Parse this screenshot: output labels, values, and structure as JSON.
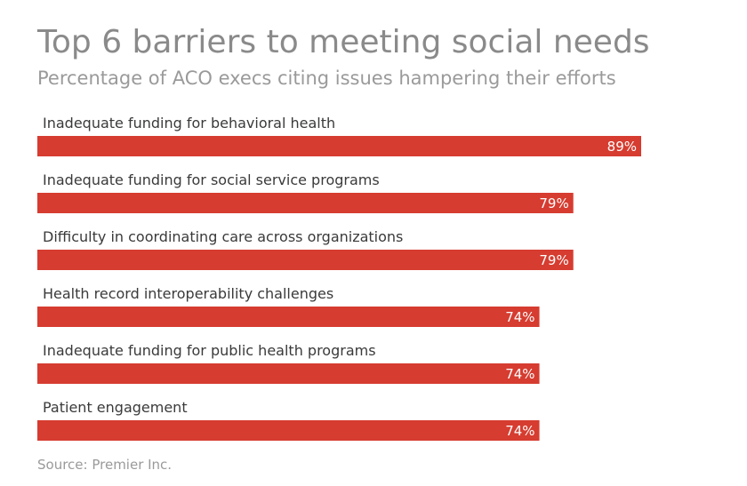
{
  "title": "Top 6 barriers to meeting social needs",
  "subtitle": "Percentage of ACO execs citing issues hampering their efforts",
  "source": "Source: Premier Inc.",
  "colors": {
    "bar": "#d63c30",
    "label": "#3a3a3a",
    "value_text": "#ffffff"
  },
  "chart_data": {
    "type": "bar",
    "orientation": "horizontal",
    "title": "Top 6 barriers to meeting social needs",
    "subtitle": "Percentage of ACO execs citing issues hampering their efforts",
    "xlim": [
      0,
      100
    ],
    "grid": false,
    "categories": [
      "Inadequate funding for behavioral health",
      "Inadequate funding for social service programs",
      "Difficulty in coordinating care across organizations",
      "Health record interoperability challenges",
      "Inadequate funding for public health programs",
      "Patient engagement"
    ],
    "values": [
      89,
      79,
      79,
      74,
      74,
      74
    ],
    "value_labels": [
      "89%",
      "79%",
      "79%",
      "74%",
      "74%",
      "74%"
    ]
  }
}
